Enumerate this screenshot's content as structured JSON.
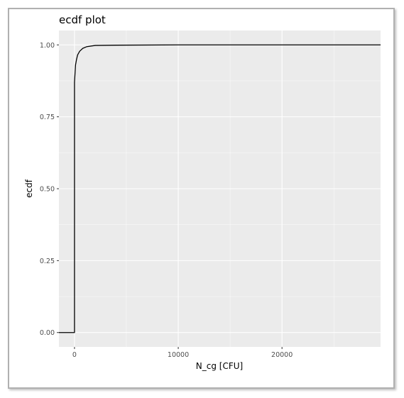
{
  "chart_data": {
    "type": "line",
    "title": "ecdf plot",
    "xlabel": "N_cg [CFU]",
    "ylabel": "ecdf",
    "xlim": [
      -1500,
      29500
    ],
    "ylim": [
      -0.05,
      1.05
    ],
    "x_ticks": [
      0,
      10000,
      20000
    ],
    "x_tick_labels": [
      "0",
      "10000",
      "20000"
    ],
    "x_minor_ticks": [
      5000,
      15000,
      25000
    ],
    "y_ticks": [
      0,
      0.25,
      0.5,
      0.75,
      1.0
    ],
    "y_tick_labels": [
      "0.00",
      "0.25",
      "0.50",
      "0.75",
      "1.00"
    ],
    "y_minor_ticks": [
      0.125,
      0.375,
      0.625,
      0.875
    ],
    "grid": true,
    "series": [
      {
        "points": [
          [
            -1500,
            0
          ],
          [
            0,
            0
          ],
          [
            0,
            0.87
          ],
          [
            50,
            0.9
          ],
          [
            100,
            0.93
          ],
          [
            200,
            0.95
          ],
          [
            300,
            0.965
          ],
          [
            500,
            0.978
          ],
          [
            800,
            0.988
          ],
          [
            1200,
            0.994
          ],
          [
            2000,
            0.998
          ],
          [
            4000,
            0.999
          ],
          [
            10000,
            1.0
          ],
          [
            29500,
            1.0
          ]
        ]
      }
    ],
    "colors": {
      "panel": "#ebebeb",
      "grid_major": "#ffffff",
      "line": "#000000"
    }
  }
}
